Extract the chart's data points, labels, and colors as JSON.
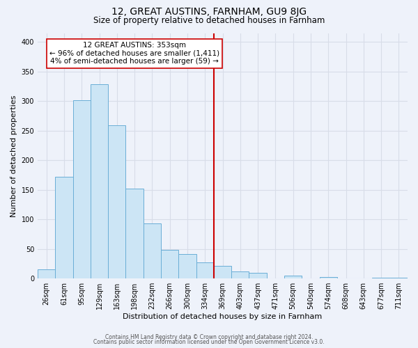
{
  "title": "12, GREAT AUSTINS, FARNHAM, GU9 8JG",
  "subtitle": "Size of property relative to detached houses in Farnham",
  "xlabel": "Distribution of detached houses by size in Farnham",
  "ylabel": "Number of detached properties",
  "bin_labels": [
    "26sqm",
    "61sqm",
    "95sqm",
    "129sqm",
    "163sqm",
    "198sqm",
    "232sqm",
    "266sqm",
    "300sqm",
    "334sqm",
    "369sqm",
    "403sqm",
    "437sqm",
    "471sqm",
    "506sqm",
    "540sqm",
    "574sqm",
    "608sqm",
    "643sqm",
    "677sqm",
    "711sqm"
  ],
  "bar_heights": [
    15,
    172,
    301,
    329,
    259,
    152,
    93,
    48,
    41,
    27,
    22,
    12,
    10,
    0,
    5,
    0,
    3,
    0,
    0,
    2,
    2
  ],
  "bar_color": "#cce5f5",
  "bar_edge_color": "#6aaed6",
  "vline_x": 10.0,
  "vline_color": "#cc0000",
  "annotation_text": "12 GREAT AUSTINS: 353sqm\n← 96% of detached houses are smaller (1,411)\n4% of semi-detached houses are larger (59) →",
  "annotation_box_color": "#ffffff",
  "annotation_box_edge": "#cc0000",
  "ylim": [
    0,
    415
  ],
  "yticks": [
    0,
    50,
    100,
    150,
    200,
    250,
    300,
    350,
    400
  ],
  "footer1": "Contains HM Land Registry data © Crown copyright and database right 2024.",
  "footer2": "Contains public sector information licensed under the Open Government Licence v3.0.",
  "bg_color": "#eef2fa",
  "plot_bg_color": "#eef2fa",
  "grid_color": "#d8dde8",
  "title_fontsize": 10,
  "subtitle_fontsize": 8.5,
  "xlabel_fontsize": 8,
  "ylabel_fontsize": 8,
  "tick_fontsize": 7,
  "ann_fontsize": 7.5,
  "footer_fontsize": 5.5
}
